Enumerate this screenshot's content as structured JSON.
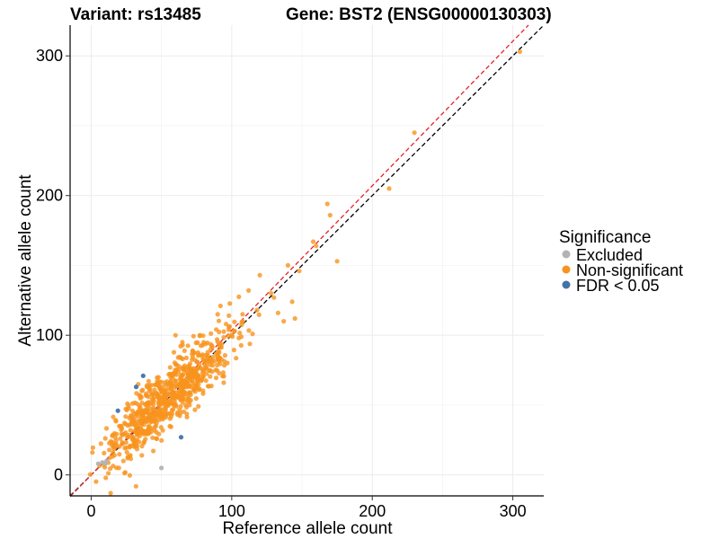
{
  "chart_data": {
    "type": "scatter",
    "title_left": "Variant: rs13485",
    "title_right": "Gene: BST2 (ENSG00000130303)",
    "xlabel": "Reference allele count",
    "ylabel": "Alternative allele count",
    "xlim": [
      -15,
      322
    ],
    "ylim": [
      -15,
      322
    ],
    "x_ticks": [
      0,
      100,
      200,
      300
    ],
    "y_ticks": [
      0,
      100,
      200,
      300
    ],
    "x_tick_labels": [
      "0",
      "100",
      "200",
      "300"
    ],
    "y_tick_labels": [
      "0",
      "100",
      "200",
      "300"
    ],
    "grid": true,
    "reference_lines": [
      {
        "name": "identity-line",
        "slope": 1,
        "intercept": 0,
        "color": "#000000",
        "style": "dashed"
      },
      {
        "name": "fit-line",
        "slope": 1.035,
        "intercept": 0,
        "color": "#e8202a",
        "style": "dashed"
      }
    ],
    "legend": {
      "title": "Significance",
      "position": "right",
      "entries": [
        {
          "label": "Excluded",
          "color": "#b3b3b3"
        },
        {
          "label": "Non-significant",
          "color": "#f7931e"
        },
        {
          "label": "FDR < 0.05",
          "color": "#4472a8"
        }
      ]
    },
    "series": [
      {
        "name": "Excluded",
        "color": "#b3b3b3",
        "points": [
          [
            5,
            8
          ],
          [
            8,
            9
          ],
          [
            10,
            8
          ],
          [
            11,
            10
          ],
          [
            50,
            5
          ]
        ]
      },
      {
        "name": "FDR < 0.05",
        "color": "#4472a8",
        "points": [
          [
            19,
            46
          ],
          [
            32,
            63
          ],
          [
            37,
            71
          ],
          [
            64,
            27
          ]
        ]
      },
      {
        "name": "Non-significant",
        "color": "#f7931e",
        "generated": {
          "count": 720,
          "seed": 13485,
          "center": [
            55,
            55
          ],
          "spread": 22,
          "noise": 9,
          "x_range": [
            10,
            110
          ]
        },
        "points": [
          [
            305,
            303
          ],
          [
            230,
            245
          ],
          [
            212,
            205
          ],
          [
            168,
            194
          ],
          [
            170,
            186
          ],
          [
            158,
            167
          ],
          [
            160,
            164
          ],
          [
            175,
            153
          ],
          [
            140,
            150
          ],
          [
            148,
            146
          ],
          [
            120,
            143
          ],
          [
            128,
            130
          ],
          [
            130,
            127
          ],
          [
            143,
            124
          ],
          [
            133,
            116
          ],
          [
            137,
            110
          ],
          [
            145,
            112
          ],
          [
            118,
            118
          ],
          [
            112,
            132
          ],
          [
            108,
            110
          ],
          [
            102,
            103
          ],
          [
            105,
            98
          ],
          [
            98,
            114
          ],
          [
            96,
            108
          ],
          [
            92,
            121
          ],
          [
            90,
            115
          ],
          [
            26,
            12
          ],
          [
            36,
            14
          ],
          [
            17,
            20
          ],
          [
            14,
            24
          ],
          [
            15,
            28
          ],
          [
            28,
            32
          ],
          [
            20,
            35
          ],
          [
            45,
            32
          ],
          [
            70,
            50
          ],
          [
            75,
            62
          ],
          [
            82,
            76
          ],
          [
            85,
            90
          ],
          [
            80,
            95
          ],
          [
            60,
            100
          ],
          [
            65,
            93
          ]
        ]
      }
    ]
  }
}
